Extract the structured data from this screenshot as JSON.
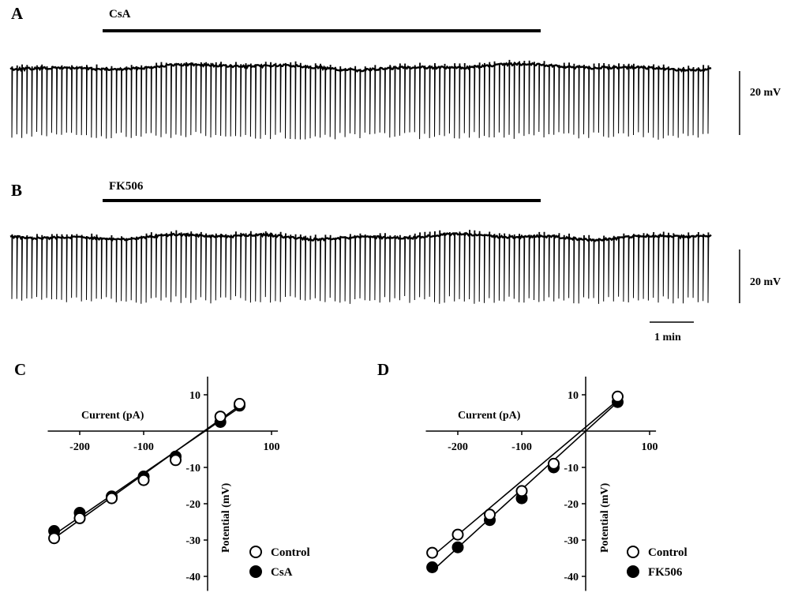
{
  "panels": {
    "A": {
      "label": "A",
      "drug": "CsA",
      "scale_label": "20 mV"
    },
    "B": {
      "label": "B",
      "drug": "FK506",
      "scale_label": "20 mV",
      "time_scale_label": "1 min"
    },
    "C": {
      "label": "C"
    },
    "D": {
      "label": "D"
    }
  },
  "colors": {
    "ink": "#000000",
    "open_marker_fill": "#ffffff",
    "filled_marker_fill": "#000000"
  },
  "chart_data": [
    {
      "panel": "C",
      "type": "scatter",
      "xlabel": "Current (pA)",
      "ylabel": "Potential (mV)",
      "xlim": [
        -250,
        110
      ],
      "ylim": [
        -44,
        15
      ],
      "xticks": [
        -200,
        -100,
        100
      ],
      "yticks": [
        10,
        -10,
        -20,
        -30,
        -40
      ],
      "legend_position": "bottom-right",
      "series": [
        {
          "name": "Control",
          "marker": "open-circle",
          "x": [
            -240,
            -200,
            -150,
            -100,
            -50,
            20,
            50
          ],
          "y": [
            -29.5,
            -24,
            -18.5,
            -13.5,
            -8,
            4,
            7.5
          ],
          "fit_line": [
            [
              -240,
              -29.5
            ],
            [
              50,
              7
            ]
          ]
        },
        {
          "name": "CsA",
          "marker": "filled-circle",
          "x": [
            -240,
            -200,
            -150,
            -100,
            -50,
            20,
            50
          ],
          "y": [
            -27.5,
            -22.5,
            -18,
            -12.5,
            -7,
            2.5,
            7
          ],
          "fit_line": [
            [
              -240,
              -28.5
            ],
            [
              50,
              6.5
            ]
          ]
        }
      ]
    },
    {
      "panel": "D",
      "type": "scatter",
      "xlabel": "Current (pA)",
      "ylabel": "Potential (mV)",
      "xlim": [
        -250,
        110
      ],
      "ylim": [
        -44,
        15
      ],
      "xticks": [
        -200,
        -100,
        100
      ],
      "yticks": [
        10,
        -10,
        -20,
        -30,
        -40
      ],
      "legend_position": "bottom-right",
      "series": [
        {
          "name": "Control",
          "marker": "open-circle",
          "x": [
            -240,
            -200,
            -150,
            -100,
            -50,
            50
          ],
          "y": [
            -33.5,
            -28.5,
            -23,
            -16.5,
            -9,
            9.5
          ],
          "fit_line": [
            [
              -240,
              -34.5
            ],
            [
              50,
              8.5
            ]
          ]
        },
        {
          "name": "FK506",
          "marker": "filled-circle",
          "x": [
            -240,
            -200,
            -150,
            -100,
            -50,
            50
          ],
          "y": [
            -37.5,
            -32,
            -24.5,
            -18.5,
            -10,
            8
          ],
          "fit_line": [
            [
              -240,
              -38.5
            ],
            [
              50,
              8
            ]
          ]
        }
      ]
    }
  ]
}
